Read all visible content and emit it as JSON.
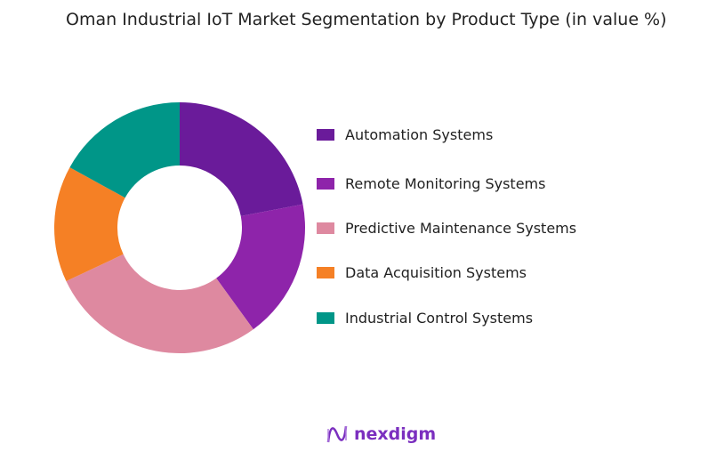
{
  "chart_data": {
    "type": "pie",
    "title": "Oman Industrial IoT Market Segmentation by Product Type (in value %)",
    "donut": true,
    "legend_position": "right",
    "categories": [
      "Automation Systems",
      "Remote Monitoring Systems",
      "Predictive Maintenance Systems",
      "Data Acquisition Systems",
      "Industrial Control Systems"
    ],
    "values": [
      22,
      18,
      28,
      15,
      17
    ],
    "colors": [
      "#6a1b9a",
      "#8e24aa",
      "#de89a0",
      "#f58025",
      "#009688"
    ]
  },
  "brand": {
    "name": "nexdigm",
    "color": "#7b2fbf"
  }
}
